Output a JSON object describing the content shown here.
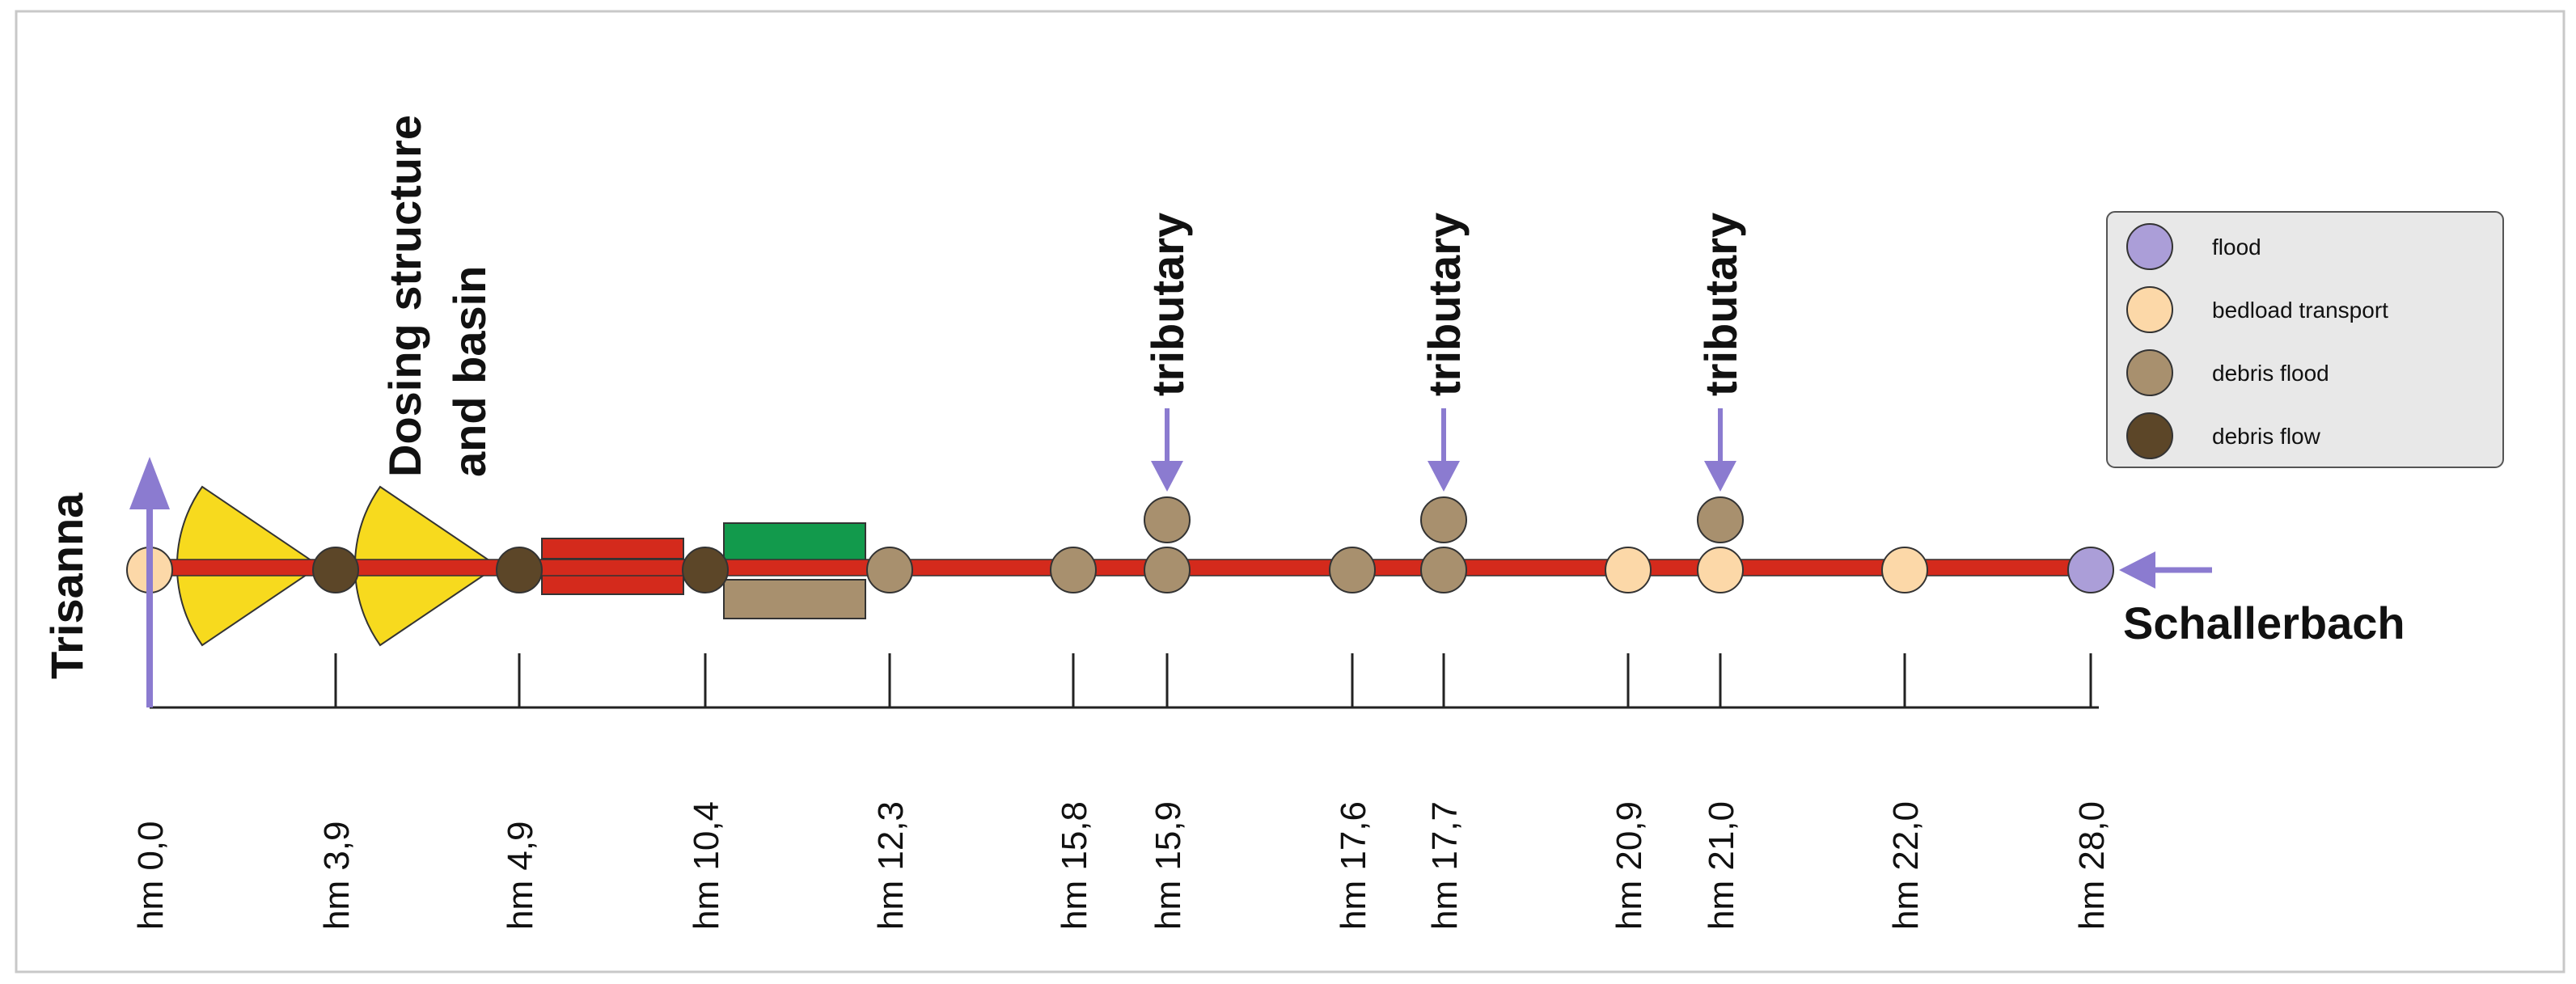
{
  "labels": {
    "start": "Trisanna",
    "end": "Schallerbach",
    "dosing": [
      "Dosing structure",
      "and basin"
    ],
    "tributary": "tributary"
  },
  "stations": [
    {
      "label": "hm 0,0",
      "km": 0.0
    },
    {
      "label": "hm 3,9",
      "km": 3.9
    },
    {
      "label": "hm 4,9",
      "km": 4.9
    },
    {
      "label": "hm 10,4",
      "km": 10.4
    },
    {
      "label": "hm 12,3",
      "km": 12.3
    },
    {
      "label": "hm 15,8",
      "km": 15.8
    },
    {
      "label": "hm 15,9",
      "km": 15.9
    },
    {
      "label": "hm 17,6",
      "km": 17.6
    },
    {
      "label": "hm 17,7",
      "km": 17.7
    },
    {
      "label": "hm 20,9",
      "km": 20.9
    },
    {
      "label": "hm 21,0",
      "km": 21.0
    },
    {
      "label": "hm 22,0",
      "km": 22.0
    },
    {
      "label": "hm 28,0",
      "km": 28.0
    }
  ],
  "process_markers": [
    {
      "station": 0,
      "type": "bedload"
    },
    {
      "station": 1,
      "type": "debris_flow"
    },
    {
      "station": 2,
      "type": "debris_flow"
    },
    {
      "station": 3,
      "type": "debris_flow"
    },
    {
      "station": 4,
      "type": "debris_flood"
    },
    {
      "station": 5,
      "type": "debris_flood"
    },
    {
      "station": 6,
      "type": "debris_flood"
    },
    {
      "station": 7,
      "type": "debris_flood"
    },
    {
      "station": 8,
      "type": "debris_flood"
    },
    {
      "station": 9,
      "type": "bedload"
    },
    {
      "station": 10,
      "type": "bedload"
    },
    {
      "station": 11,
      "type": "bedload"
    },
    {
      "station": 12,
      "type": "flood"
    }
  ],
  "tributaries": [
    {
      "station": 6,
      "type": "debris_flood"
    },
    {
      "station": 8,
      "type": "debris_flood"
    },
    {
      "station": 10,
      "type": "debris_flood"
    }
  ],
  "legend": [
    {
      "key": "flood",
      "label": "flood",
      "color": "#ab9ed8"
    },
    {
      "key": "bedload",
      "label": "bedload transport",
      "color": "#fcd8a8"
    },
    {
      "key": "debris_flood",
      "label": "debris flood",
      "color": "#a8906e"
    },
    {
      "key": "debris_flow",
      "label": "debris flow",
      "color": "#5c4628"
    }
  ],
  "colors": {
    "channel": "#d42a1c",
    "fan": "#f7da1e",
    "green_block": "#129a4c",
    "brown_block": "#a8906e",
    "arrow": "#8b7bd0",
    "legend_bg": "#e8e8e8"
  }
}
